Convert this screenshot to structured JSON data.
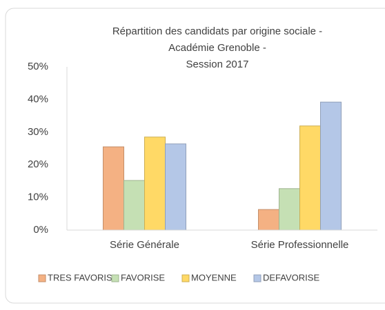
{
  "chart_data": {
    "type": "bar",
    "title": [
      "Répartition des candidats par origine sociale -",
      "Académie Grenoble -",
      "Session 2017"
    ],
    "categories": [
      "Série Générale",
      "Série Professionnelle"
    ],
    "series": [
      {
        "name": "TRES FAVORISE",
        "color": "#f4b183",
        "values": [
          25.5,
          6.3
        ]
      },
      {
        "name": "FAVORISE",
        "color": "#c5e0b4",
        "values": [
          15.2,
          12.7
        ]
      },
      {
        "name": "MOYENNE",
        "color": "#ffd966",
        "values": [
          28.5,
          31.9
        ]
      },
      {
        "name": "DEFAVORISE",
        "color": "#b4c7e7",
        "values": [
          26.4,
          39.2
        ]
      }
    ],
    "ylim": [
      0,
      50
    ],
    "yticks": [
      {
        "value": 0,
        "label": "0%"
      },
      {
        "value": 10,
        "label": "10%"
      },
      {
        "value": 20,
        "label": "20%"
      },
      {
        "value": 30,
        "label": "30%"
      },
      {
        "value": 40,
        "label": "40%"
      },
      {
        "value": 50,
        "label": "50%"
      }
    ],
    "grid": false,
    "legend": "bottom"
  }
}
